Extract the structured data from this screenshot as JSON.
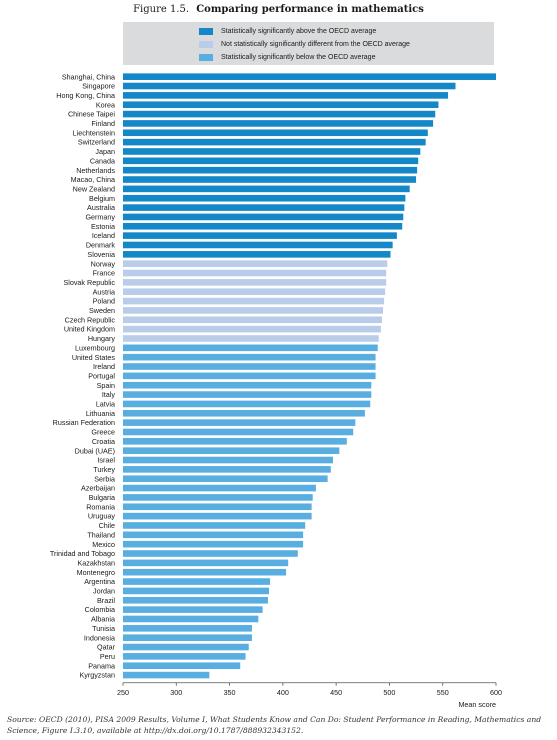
{
  "figure": {
    "number": "Figure 1.5.",
    "title": "Comparing performance in mathematics"
  },
  "legend": [
    {
      "label": "Statistically significantly above the OECD average",
      "color": "#1487c9"
    },
    {
      "label": "Not statistically significantly different from the OECD average",
      "color": "#b9cdea"
    },
    {
      "label": "Statistically significantly below the OECD average",
      "color": "#58aee0"
    }
  ],
  "source": "Source:  OECD (2010), PISA 2009 Results, Volume I, What Students Know and Can Do: Student Performance in Reading, Mathematics and Science, Figure I.3.10, available at http://dx.doi.org/10.1787/888932343152.",
  "chart_data": {
    "type": "bar",
    "orientation": "horizontal",
    "xlabel": "Mean score",
    "xlim": [
      250,
      600
    ],
    "xticks": [
      250,
      300,
      350,
      400,
      450,
      500,
      550,
      600
    ],
    "grid": false,
    "legend_placement": "top",
    "categories": [
      "Shanghai, China",
      "Singapore",
      "Hong Kong, China",
      "Korea",
      "Chinese Taipei",
      "Finland",
      "Liechtenstein",
      "Switzerland",
      "Japan",
      "Canada",
      "Netherlands",
      "Macao, China",
      "New Zealand",
      "Belgium",
      "Australia",
      "Germany",
      "Estonia",
      "Iceland",
      "Denmark",
      "Slovenia",
      "Norway",
      "France",
      "Slovak Republic",
      "Austria",
      "Poland",
      "Sweden",
      "Czech Republic",
      "United Kingdom",
      "Hungary",
      "Luxembourg",
      "United States",
      "Ireland",
      "Portugal",
      "Spain",
      "Italy",
      "Latvia",
      "Lithuania",
      "Russian Federation",
      "Greece",
      "Croatia",
      "Dubai (UAE)",
      "Israel",
      "Turkey",
      "Serbia",
      "Azerbaijan",
      "Bulgaria",
      "Romania",
      "Uruguay",
      "Chile",
      "Thailand",
      "Mexico",
      "Trinidad and Tobago",
      "Kazakhstan",
      "Montenegro",
      "Argentina",
      "Jordan",
      "Brazil",
      "Colombia",
      "Albania",
      "Tunisia",
      "Indonesia",
      "Qatar",
      "Peru",
      "Panama",
      "Kyrgyzstan"
    ],
    "values": [
      600,
      562,
      555,
      546,
      543,
      541,
      536,
      534,
      529,
      527,
      526,
      525,
      519,
      515,
      514,
      513,
      512,
      507,
      503,
      501,
      498,
      497,
      497,
      496,
      495,
      494,
      493,
      492,
      490,
      489,
      487,
      487,
      487,
      483,
      483,
      482,
      477,
      468,
      466,
      460,
      453,
      447,
      445,
      442,
      431,
      428,
      427,
      427,
      421,
      419,
      419,
      414,
      405,
      403,
      388,
      387,
      386,
      381,
      377,
      371,
      371,
      368,
      365,
      360,
      331
    ],
    "groups": [
      "above",
      "above",
      "above",
      "above",
      "above",
      "above",
      "above",
      "above",
      "above",
      "above",
      "above",
      "above",
      "above",
      "above",
      "above",
      "above",
      "above",
      "above",
      "above",
      "above",
      "not",
      "not",
      "not",
      "not",
      "not",
      "not",
      "not",
      "not",
      "not",
      "below",
      "below",
      "below",
      "below",
      "below",
      "below",
      "below",
      "below",
      "below",
      "below",
      "below",
      "below",
      "below",
      "below",
      "below",
      "below",
      "below",
      "below",
      "below",
      "below",
      "below",
      "below",
      "below",
      "below",
      "below",
      "below",
      "below",
      "below",
      "below",
      "below",
      "below",
      "below",
      "below",
      "below",
      "below",
      "below"
    ],
    "group_colors": {
      "above": "#1487c9",
      "not": "#b9cdea",
      "below": "#58aee0"
    }
  }
}
